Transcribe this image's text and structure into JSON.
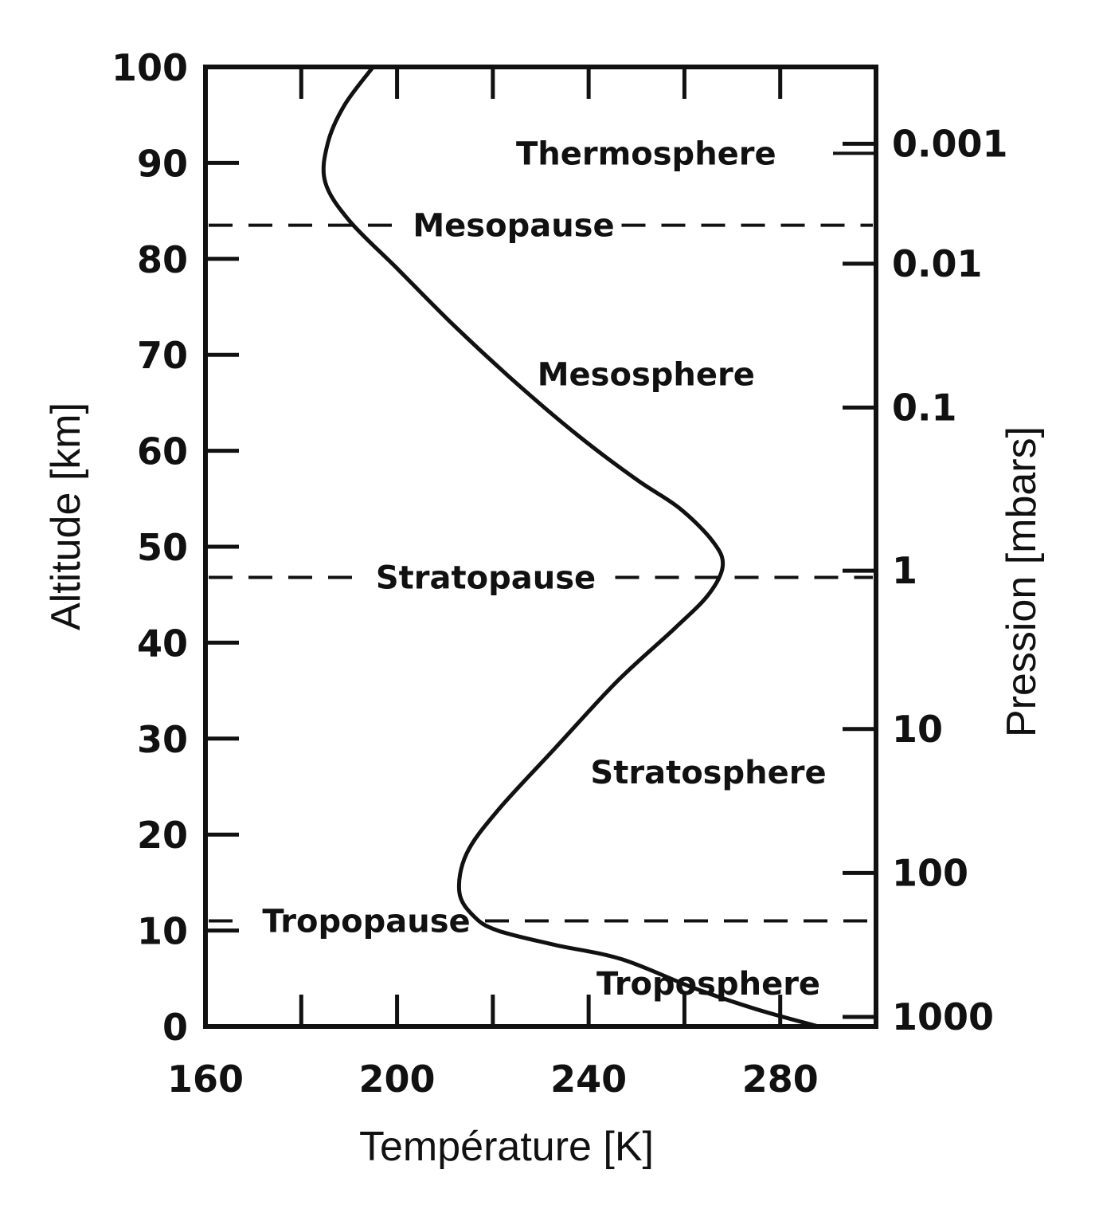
{
  "chart_data": {
    "type": "line",
    "title": "",
    "xlabel": "Température [K]",
    "ylabel": "Altitude [km]",
    "y2label": "Pression [mbars]",
    "xlim": [
      160,
      300
    ],
    "ylim": [
      0,
      100
    ],
    "x_ticks": [
      160,
      200,
      240,
      280
    ],
    "y_ticks": [
      0,
      10,
      20,
      30,
      40,
      50,
      60,
      70,
      80,
      90,
      100
    ],
    "y2_ticks": [
      {
        "label": "0.001",
        "altitude": 92
      },
      {
        "label": "0.01",
        "altitude": 79.5
      },
      {
        "label": "0.1",
        "altitude": 64.5
      },
      {
        "label": "1",
        "altitude": 47.5
      },
      {
        "label": "10",
        "altitude": 31
      },
      {
        "label": "100",
        "altitude": 16
      },
      {
        "label": "1000",
        "altitude": 1
      }
    ],
    "series": [
      {
        "name": "",
        "points": [
          {
            "x": 288,
            "y": 0
          },
          {
            "x": 275,
            "y": 1.8
          },
          {
            "x": 262,
            "y": 4
          },
          {
            "x": 247,
            "y": 7
          },
          {
            "x": 233,
            "y": 8.5
          },
          {
            "x": 221,
            "y": 10
          },
          {
            "x": 216,
            "y": 11.5
          },
          {
            "x": 213,
            "y": 14
          },
          {
            "x": 214.5,
            "y": 18
          },
          {
            "x": 221,
            "y": 22.5
          },
          {
            "x": 233,
            "y": 29
          },
          {
            "x": 246,
            "y": 36
          },
          {
            "x": 258,
            "y": 41.5
          },
          {
            "x": 265,
            "y": 45
          },
          {
            "x": 268,
            "y": 48
          },
          {
            "x": 266,
            "y": 50.5
          },
          {
            "x": 259,
            "y": 54
          },
          {
            "x": 250,
            "y": 57
          },
          {
            "x": 238,
            "y": 61.5
          },
          {
            "x": 225,
            "y": 67
          },
          {
            "x": 212,
            "y": 73
          },
          {
            "x": 200,
            "y": 79
          },
          {
            "x": 190,
            "y": 84
          },
          {
            "x": 185,
            "y": 88
          },
          {
            "x": 185.5,
            "y": 92
          },
          {
            "x": 189,
            "y": 96
          },
          {
            "x": 195,
            "y": 100
          }
        ]
      }
    ],
    "boundaries": [
      {
        "label": "Mesopause",
        "y": 83.5
      },
      {
        "label": "Stratopause",
        "y": 46.8
      },
      {
        "label": "Tropopause",
        "y": 11
      }
    ],
    "regions": [
      {
        "label": "Thermosphere",
        "x": 252,
        "y": 91
      },
      {
        "label": "Mesosphere",
        "x": 252,
        "y": 68
      },
      {
        "label": "Stratosphere",
        "x": 265,
        "y": 26.5
      },
      {
        "label": "Troposphere",
        "x": 265,
        "y": 4.5
      }
    ],
    "grid": false,
    "legend": "none"
  }
}
